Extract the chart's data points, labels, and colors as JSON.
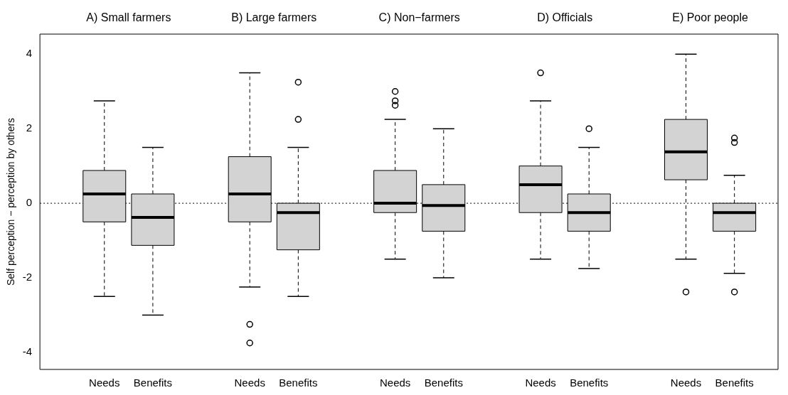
{
  "chart_data": {
    "type": "box",
    "ylabel": "Self perception − perception by others",
    "categories": [
      "Needs",
      "Benefits",
      "Needs",
      "Benefits",
      "Needs",
      "Benefits",
      "Needs",
      "Benefits",
      "Needs",
      "Benefits"
    ],
    "annotations": [
      "A) Small farmers",
      "B) Large farmers",
      "C) Non−farmers",
      "D) Officials",
      "E) Poor people"
    ],
    "boxes": [
      {
        "low": -2.5,
        "q1": -0.5,
        "median": 0.25,
        "q3": 0.88,
        "high": 2.75
      },
      {
        "low": -3,
        "q1": -1.13,
        "median": -0.38,
        "q3": 0.25,
        "high": 1.5
      },
      {
        "low": -2.25,
        "q1": -0.5,
        "median": 0.25,
        "q3": 1.25,
        "high": 3.5,
        "outliers": [
          -3.25,
          -3.75
        ]
      },
      {
        "low": -2.5,
        "q1": -1.25,
        "median": -0.25,
        "q3": 0,
        "high": 1.5,
        "outliers": [
          2.25,
          3.25
        ]
      },
      {
        "low": -1.5,
        "q1": -0.25,
        "median": 0,
        "q3": 0.88,
        "high": 2.25,
        "outliers": [
          2.63,
          2.75,
          3
        ]
      },
      {
        "low": -2,
        "q1": -0.75,
        "median": -0.06,
        "q3": 0.5,
        "high": 2
      },
      {
        "low": -1.5,
        "q1": -0.25,
        "median": 0.5,
        "q3": 1,
        "high": 2.75,
        "outliers": [
          3.5
        ]
      },
      {
        "low": -1.75,
        "q1": -0.75,
        "median": -0.25,
        "q3": 0.25,
        "high": 1.5,
        "outliers": [
          2
        ]
      },
      {
        "low": -1.5,
        "q1": 0.63,
        "median": 1.38,
        "q3": 2.25,
        "high": 4,
        "outliers": [
          -2.38
        ]
      },
      {
        "low": -1.88,
        "q1": -0.75,
        "median": -0.25,
        "q3": 0,
        "high": 0.75,
        "outliers": [
          1.63,
          1.75,
          -2.38
        ]
      }
    ],
    "color": "#d3d3d3",
    "ylim": [
      -4.46,
      4.54
    ],
    "yticks": [
      -4,
      -2,
      0,
      2,
      4
    ],
    "ref_lines": [
      {
        "axis": "y",
        "value": 0,
        "line_style": "dotted"
      }
    ],
    "grid": false,
    "legend": false
  }
}
